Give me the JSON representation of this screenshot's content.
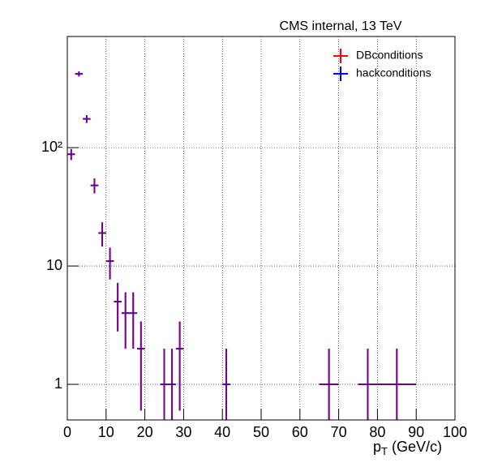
{
  "chart_data": {
    "type": "errorbar",
    "title": "CMS internal, 13 TeV",
    "xlabel": [
      "p",
      "T",
      " (GeV/c)"
    ],
    "x": [
      1,
      3,
      5,
      7,
      9,
      11,
      13,
      15,
      17,
      19,
      25,
      27,
      29,
      41,
      67.5,
      77.5,
      85
    ],
    "xerr": [
      1,
      1,
      1,
      1,
      1,
      1,
      1,
      1,
      1,
      1,
      1,
      1,
      1,
      1,
      2.5,
      2.5,
      5
    ],
    "series": [
      {
        "name": "DBconditions",
        "color": "#ff0000",
        "values": [
          88,
          420,
          175,
          48,
          19,
          11,
          5,
          4,
          4,
          2,
          1,
          1,
          2,
          1,
          1,
          1,
          1
        ],
        "errors": [
          9.4,
          20.5,
          13.2,
          6.9,
          4.4,
          3.3,
          2.2,
          2,
          2,
          1.4,
          1,
          1,
          1.4,
          1,
          1,
          1,
          1
        ]
      },
      {
        "name": "hackconditions",
        "color": "#0000ff",
        "values": [
          88,
          420,
          175,
          48,
          19,
          11,
          5,
          4,
          4,
          2,
          1,
          1,
          2,
          1,
          1,
          1,
          1
        ],
        "errors": [
          9.4,
          20.5,
          13.2,
          6.9,
          4.4,
          3.3,
          2.2,
          2,
          2,
          1.4,
          1,
          1,
          1.4,
          1,
          1,
          1,
          1
        ]
      }
    ],
    "xlim": [
      0,
      100
    ],
    "xticks": [
      0,
      10,
      20,
      30,
      40,
      50,
      60,
      70,
      80,
      90,
      100
    ],
    "ylim": [
      0.5,
      870
    ],
    "yticks": [
      1,
      10,
      {
        "value": 100,
        "label": "10²"
      }
    ],
    "ylog": true,
    "grid": true,
    "legend": "upper right"
  }
}
